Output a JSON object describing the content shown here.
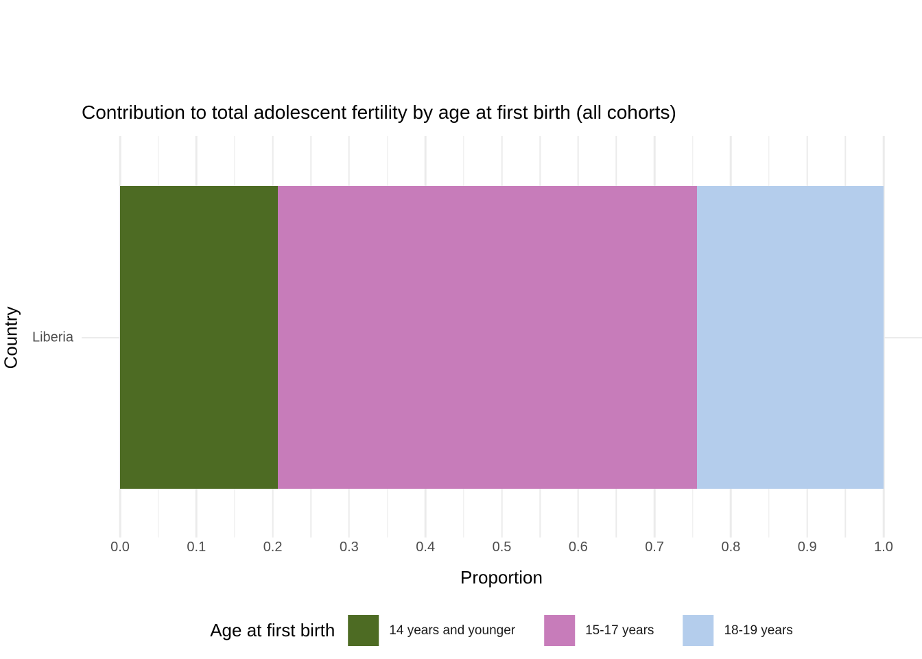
{
  "style": {
    "grid_color": "#EBEBEB",
    "tick_label_color": "#4D4D4D",
    "background_color": "#FFFFFF"
  },
  "chart_data": {
    "type": "bar",
    "orientation": "horizontal",
    "stacked": true,
    "title": "Contribution to total adolescent fertility by age at first birth (all cohorts)",
    "xlabel": "Proportion",
    "ylabel": "Country",
    "categories": [
      "Liberia"
    ],
    "series": [
      {
        "name": "14 years and younger",
        "values": [
          0.207
        ],
        "color": "#4D6B23"
      },
      {
        "name": "15-17 years",
        "values": [
          0.549
        ],
        "color": "#C77CBA"
      },
      {
        "name": "18-19 years",
        "values": [
          0.244
        ],
        "color": "#B4CDEC"
      }
    ],
    "xlim": [
      0.0,
      1.0
    ],
    "x_tick_labels": [
      "0.0",
      "0.1",
      "0.2",
      "0.3",
      "0.4",
      "0.5",
      "0.6",
      "0.7",
      "0.8",
      "0.9",
      "1.0"
    ],
    "x_minor_step": 0.05,
    "grid": true,
    "legend_title": "Age at first birth",
    "legend_position": "bottom"
  }
}
